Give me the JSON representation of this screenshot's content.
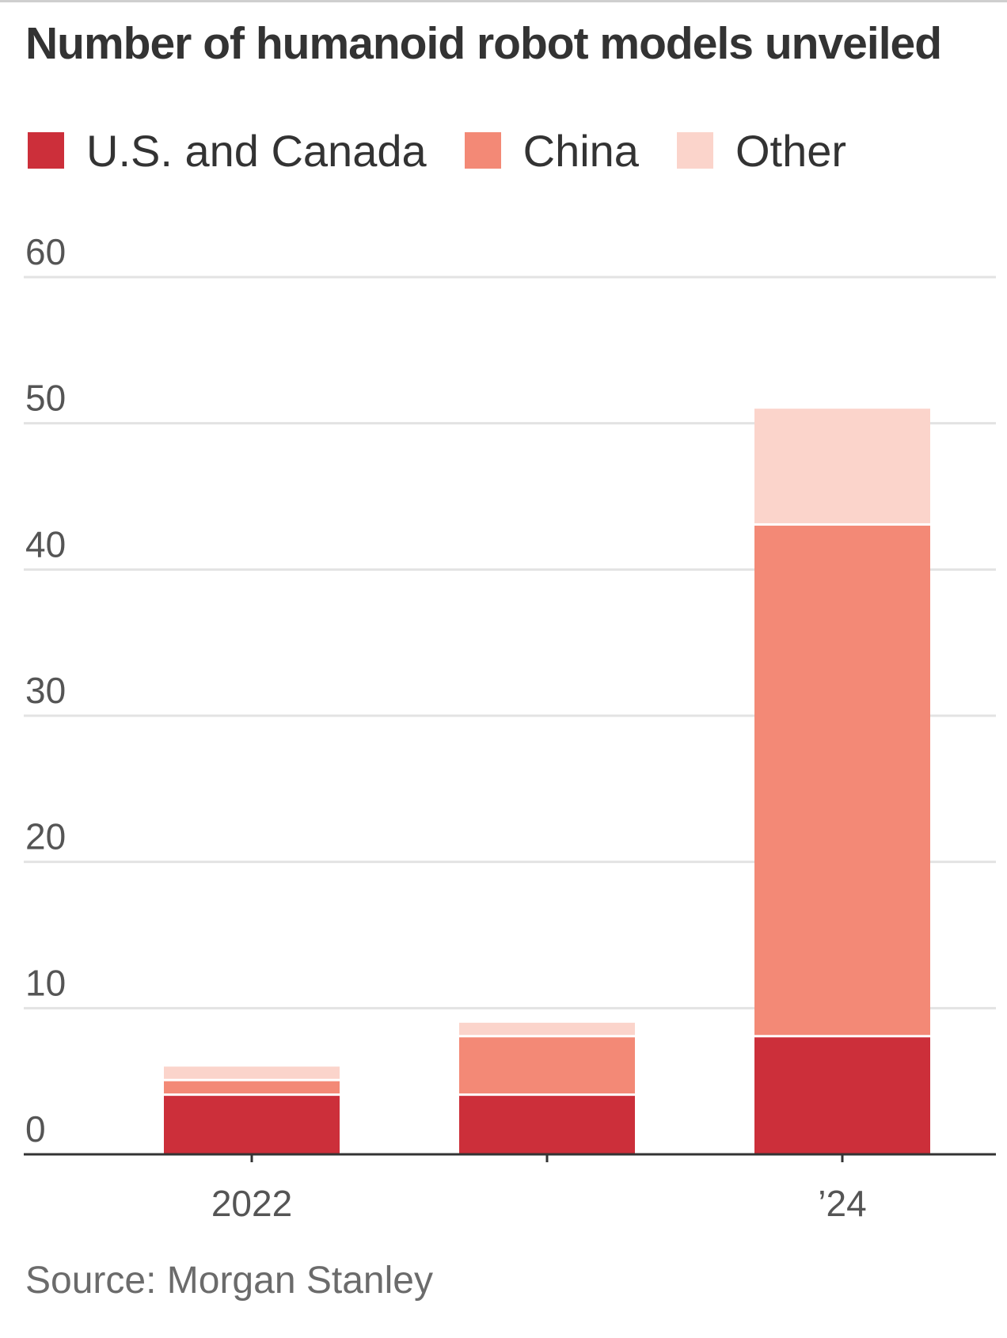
{
  "chart_data": {
    "type": "bar",
    "stacked": true,
    "title": "Number of humanoid robot models unveiled",
    "categories": [
      "2022",
      "",
      "’24"
    ],
    "series": [
      {
        "name": "U.S. and Canada",
        "color": "#cc2f3a",
        "values": [
          4,
          4,
          8
        ]
      },
      {
        "name": "China",
        "color": "#f38976",
        "values": [
          1,
          4,
          35
        ]
      },
      {
        "name": "Other",
        "color": "#fbd4cb",
        "values": [
          1,
          1,
          8
        ]
      }
    ],
    "ylim": [
      0,
      60
    ],
    "yticks": [
      "0",
      "10",
      "20",
      "30",
      "40",
      "50",
      "60"
    ],
    "grid": true,
    "legend": "top-left",
    "source": "Source: Morgan Stanley"
  }
}
